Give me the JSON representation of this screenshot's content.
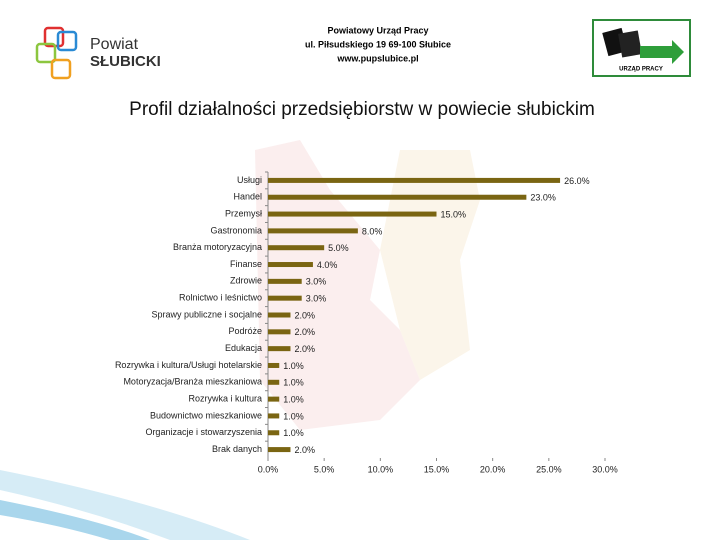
{
  "header": {
    "logo_line1": "Powiat",
    "logo_line2": "SŁUBICKI",
    "office_name": "Powiatowy Urząd Pracy",
    "address": "ul. Piłsudskiego 19 69-100 Słubice",
    "website": "www.pupslubice.pl",
    "right_logo": "URZĄD PRACY"
  },
  "chart_data": {
    "type": "hbar",
    "title": "Profil działalności przedsiębiorstw w powiecie słubickim",
    "categories": [
      "Usługi",
      "Handel",
      "Przemysł",
      "Gastronomia",
      "Branża motoryzacyjna",
      "Finanse",
      "Zdrowie",
      "Rolnictwo i leśnictwo",
      "Sprawy publiczne i socjalne",
      "Podróże",
      "Edukacja",
      "Rozrywka i kultura/Usługi hotelarskie",
      "Motoryzacja/Branża mieszkaniowa",
      "Rozrywka i kultura",
      "Budownictwo mieszkaniowe",
      "Organizacje i stowarzyszenia",
      "Brak danych"
    ],
    "values": [
      26,
      23,
      15,
      8,
      5,
      4,
      3,
      3,
      2,
      2,
      2,
      1,
      1,
      1,
      1,
      1,
      2
    ],
    "value_labels": [
      "26.0%",
      "23.0%",
      "15.0%",
      "8.0%",
      "5.0%",
      "4.0%",
      "3.0%",
      "3.0%",
      "2.0%",
      "2.0%",
      "2.0%",
      "1.0%",
      "1.0%",
      "1.0%",
      "1.0%",
      "1.0%",
      "2.0%"
    ],
    "color": "#7a6512",
    "xlim": [
      0,
      30
    ],
    "xticks": [
      {
        "value": 0,
        "label": "0.0%"
      },
      {
        "value": 5,
        "label": "5.0%"
      },
      {
        "value": 10,
        "label": "10.0%"
      },
      {
        "value": 15,
        "label": "15.0%"
      },
      {
        "value": 20,
        "label": "20.0%"
      },
      {
        "value": 25,
        "label": "25.0%"
      },
      {
        "value": 30,
        "label": "30.0%"
      }
    ],
    "grid": false
  }
}
